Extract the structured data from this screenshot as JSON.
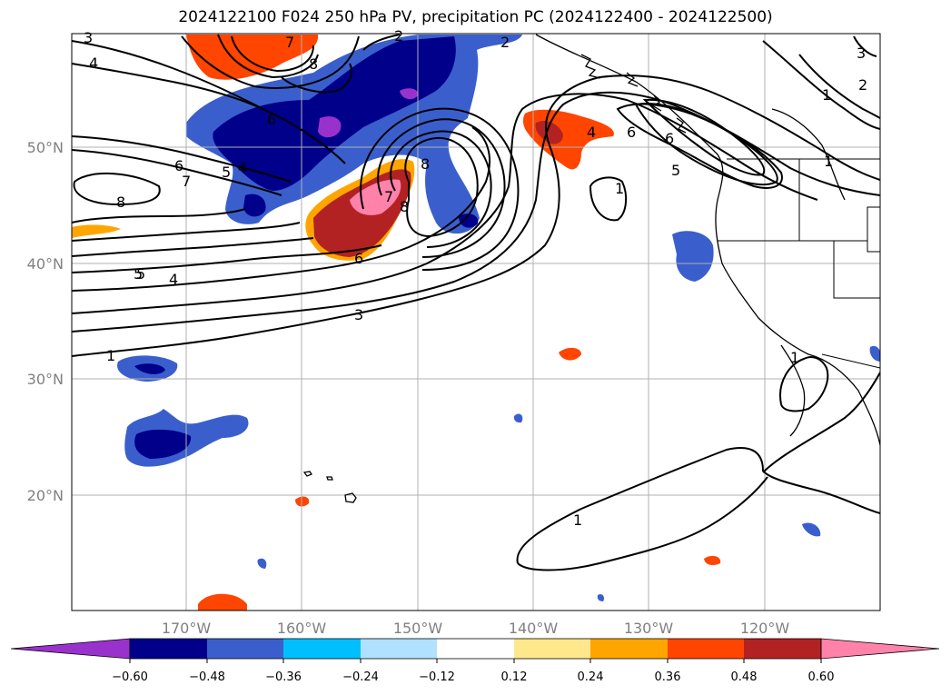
{
  "title": "2024122100 F024 250 hPa PV, precipitation PC (2024122400 - 2024122500)",
  "map": {
    "lon_labels": [
      "170°W",
      "160°W",
      "150°W",
      "140°W",
      "130°W",
      "120°W"
    ],
    "lat_labels": [
      "50°N",
      "40°N",
      "30°N",
      "20°N"
    ],
    "gridline_color": "#b0b0b0",
    "land_outline_color": "#000000"
  },
  "pv_contour_labels": [
    "3",
    "4",
    "7",
    "8",
    "2",
    "2",
    "3",
    "2",
    "1",
    "6",
    "7",
    "8",
    "6",
    "5",
    "4",
    "5",
    "6",
    "1",
    "8",
    "7",
    "8",
    "6",
    "4",
    "6",
    "5",
    "1",
    "1",
    "5",
    "4",
    "3",
    "1",
    "1"
  ],
  "colorbar": {
    "ticks": [
      "−0.60",
      "−0.48",
      "−0.36",
      "−0.24",
      "−0.12",
      "0.12",
      "0.24",
      "0.36",
      "0.48",
      "0.60"
    ],
    "colors": [
      "#9932cc",
      "#00008b",
      "#3a5fcd",
      "#00bfff",
      "#b0e2ff",
      "#ffffff",
      "#ffe88c",
      "#ffa500",
      "#ff4500",
      "#b22222",
      "#ff82ab",
      "#ff82ab"
    ]
  }
}
